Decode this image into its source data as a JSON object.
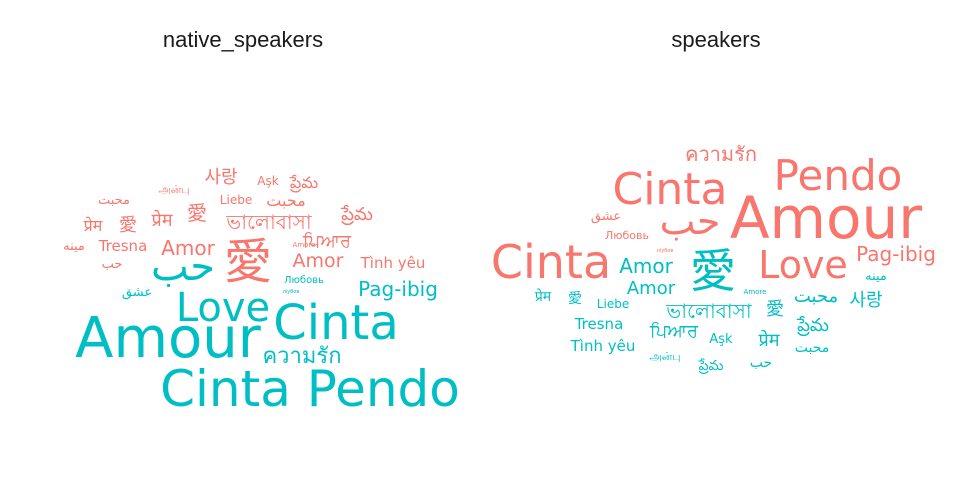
{
  "colors": {
    "group_a": "#F8766D",
    "group_b": "#00BFC4"
  },
  "chart_data": [
    {
      "type": "wordcloud",
      "title": "native_speakers",
      "words": [
        {
          "text": "Cinta Pendo",
          "group": "b"
        },
        {
          "text": "Amour",
          "group": "b"
        },
        {
          "text": "Cinta",
          "group": "b"
        },
        {
          "text": "Love",
          "group": "b"
        },
        {
          "text": "حب",
          "group": "b"
        },
        {
          "text": "愛",
          "group": "a"
        },
        {
          "text": "ความรัก",
          "group": "b"
        },
        {
          "text": "Pag-ibig",
          "group": "b"
        },
        {
          "text": "Amor",
          "group": "a"
        },
        {
          "text": "Amor",
          "group": "a"
        },
        {
          "text": "ভালোবাসা",
          "group": "a"
        },
        {
          "text": "ਪਿਆਰ",
          "group": "a"
        },
        {
          "text": "प्रेम",
          "group": "a"
        },
        {
          "text": "प्रेम",
          "group": "a"
        },
        {
          "text": "愛",
          "group": "a"
        },
        {
          "text": "愛",
          "group": "a"
        },
        {
          "text": "사랑",
          "group": "a"
        },
        {
          "text": "ప్రేమ",
          "group": "a"
        },
        {
          "text": "محبت",
          "group": "a"
        },
        {
          "text": "محبت",
          "group": "a"
        },
        {
          "text": "ప్రేమ",
          "group": "a"
        },
        {
          "text": "Tình yêu",
          "group": "a"
        },
        {
          "text": "Tresna",
          "group": "a"
        },
        {
          "text": "مینه",
          "group": "a"
        },
        {
          "text": "حب",
          "group": "a"
        },
        {
          "text": "عشق",
          "group": "b"
        },
        {
          "text": "Aşk",
          "group": "a"
        },
        {
          "text": "Liebe",
          "group": "a"
        },
        {
          "text": "அன்பு",
          "group": "a"
        },
        {
          "text": "Любовь",
          "group": "b"
        },
        {
          "text": "Amore",
          "group": "a"
        },
        {
          "text": "ліубов",
          "group": "b"
        }
      ]
    },
    {
      "type": "wordcloud",
      "title": "speakers",
      "words": [
        {
          "text": "Amour",
          "group": "a"
        },
        {
          "text": "Cinta",
          "group": "a"
        },
        {
          "text": "Cinta",
          "group": "a"
        },
        {
          "text": "Pendo",
          "group": "a"
        },
        {
          "text": "愛",
          "group": "b"
        },
        {
          "text": "Love",
          "group": "a"
        },
        {
          "text": "حب",
          "group": "a"
        },
        {
          "text": "ความรัก",
          "group": "a"
        },
        {
          "text": "Pag-ibig",
          "group": "a"
        },
        {
          "text": "Amor",
          "group": "b"
        },
        {
          "text": "Amor",
          "group": "b"
        },
        {
          "text": "ভালোবাসা",
          "group": "b"
        },
        {
          "text": "사랑",
          "group": "b"
        },
        {
          "text": "محبت",
          "group": "b"
        },
        {
          "text": "ਪਿਆਰ",
          "group": "b"
        },
        {
          "text": "ప్రేమ",
          "group": "b"
        },
        {
          "text": "Tresna",
          "group": "b"
        },
        {
          "text": "Tình yêu",
          "group": "b"
        },
        {
          "text": "प्रेम",
          "group": "b"
        },
        {
          "text": "प्रेम",
          "group": "b"
        },
        {
          "text": "愛",
          "group": "b"
        },
        {
          "text": "愛",
          "group": "b"
        },
        {
          "text": "محبت",
          "group": "b"
        },
        {
          "text": "ప్రేమ",
          "group": "b"
        },
        {
          "text": "حب",
          "group": "b"
        },
        {
          "text": "مینه",
          "group": "b"
        },
        {
          "text": "عشق",
          "group": "a"
        },
        {
          "text": "Любовь",
          "group": "a"
        },
        {
          "text": "Liebe",
          "group": "b"
        },
        {
          "text": "Aşk",
          "group": "b"
        },
        {
          "text": "அன்பு",
          "group": "b"
        },
        {
          "text": "Amore",
          "group": "b"
        },
        {
          "text": "ліубов",
          "group": "a"
        }
      ]
    }
  ]
}
